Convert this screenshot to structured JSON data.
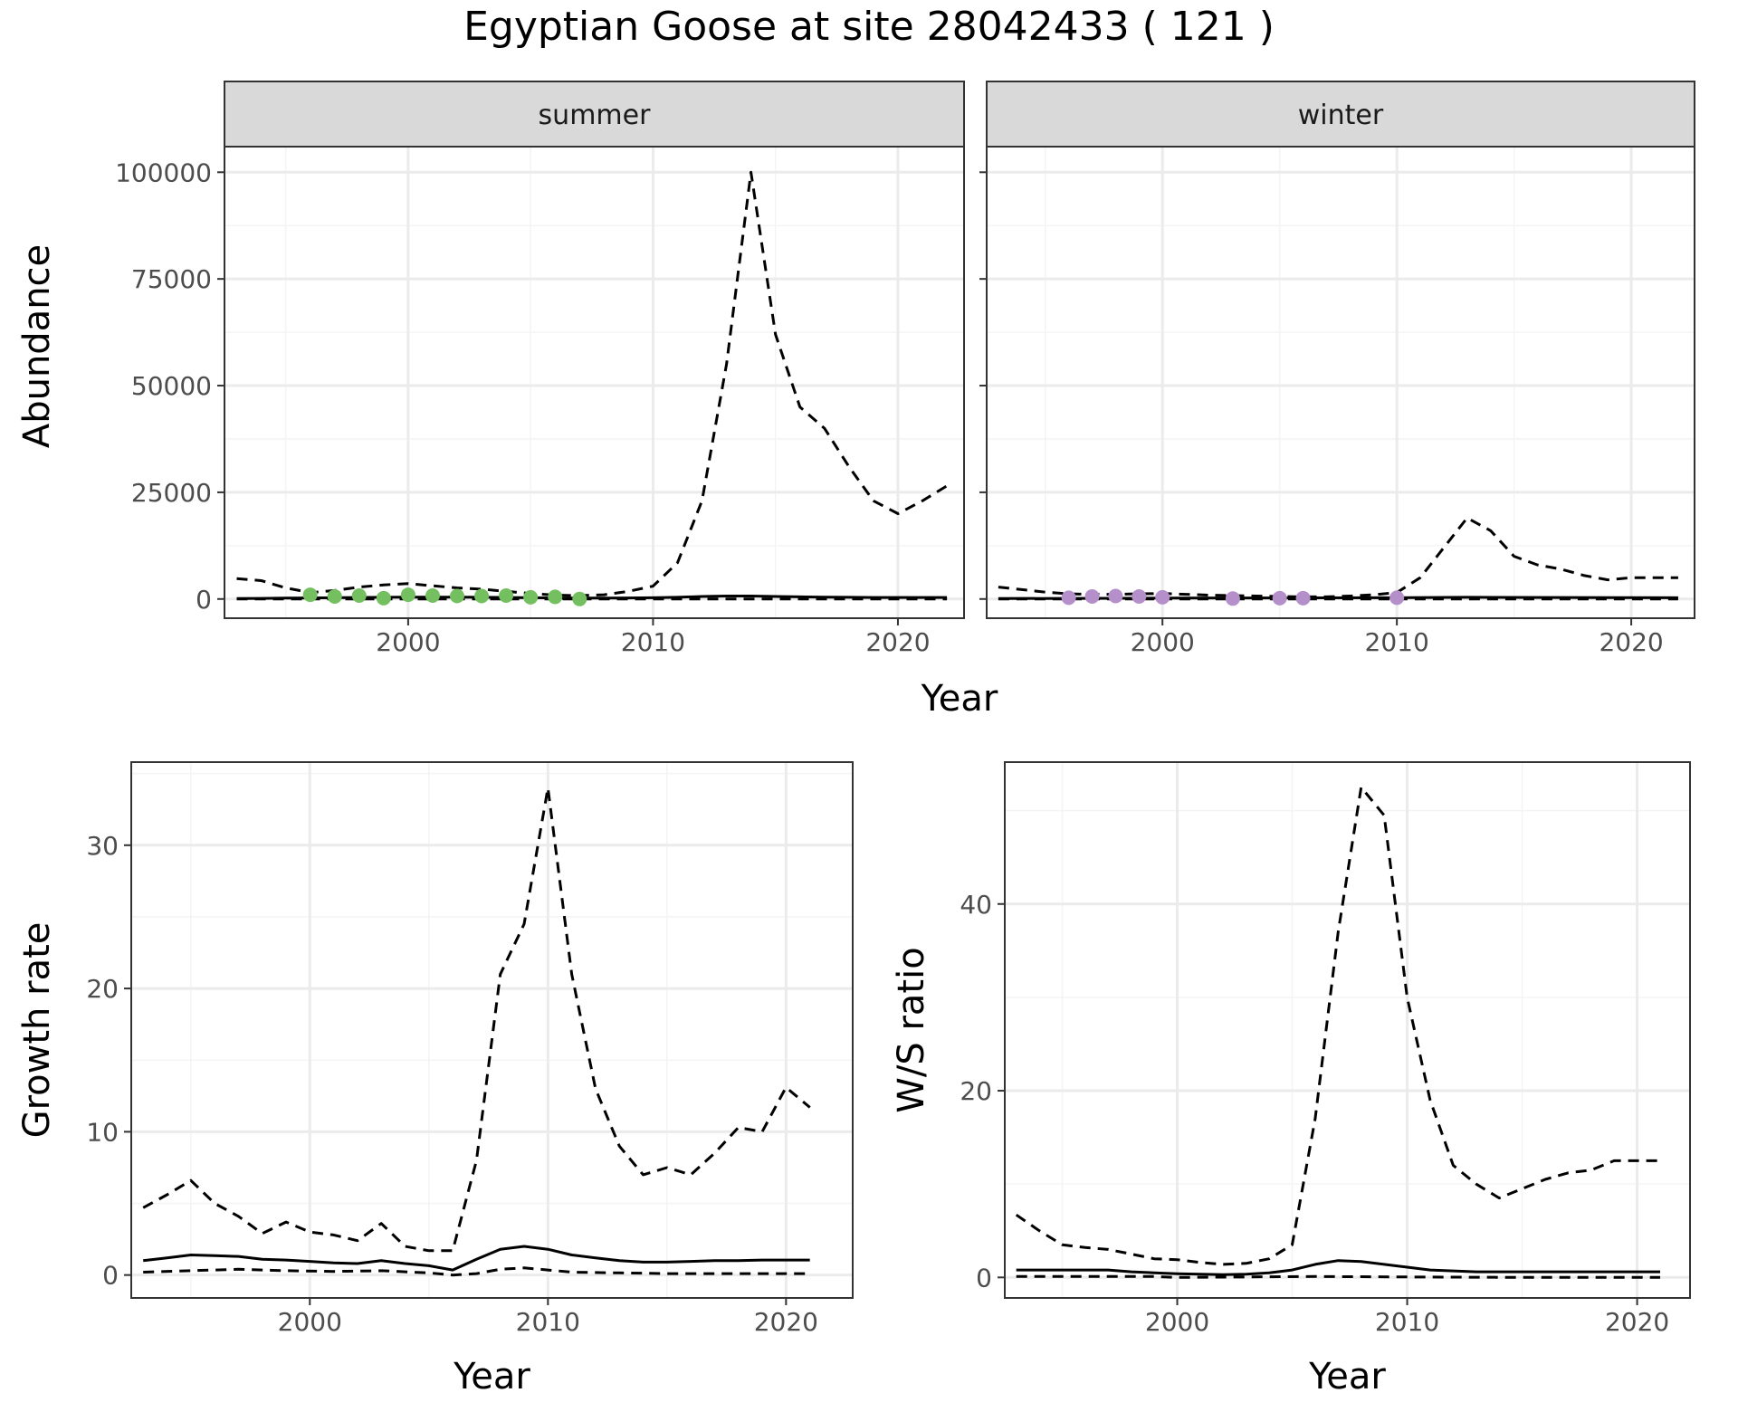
{
  "title": "Egyptian Goose at site 28042433 ( 121 )",
  "colors": {
    "summer_points": "#74c060",
    "winter_points": "#b48fca",
    "line": "#000000",
    "grid_major": "#ebebeb",
    "grid_minor": "#f4f4f4",
    "strip_bg": "#d9d9d9"
  },
  "chart_data": [
    {
      "id": "abundance",
      "type": "line",
      "facets": [
        "summer",
        "winter"
      ],
      "xlabel": "Year",
      "ylabel": "Abundance",
      "xlim": [
        1992.5,
        2022.7
      ],
      "ylim": [
        -4500,
        106000
      ],
      "x_ticks": [
        2000,
        2010,
        2020
      ],
      "y_ticks": [
        0,
        25000,
        50000,
        75000,
        100000
      ],
      "grid": true,
      "panels": [
        {
          "facet": "summer",
          "point_color": "summer_points",
          "series": [
            {
              "style": "upper-dashed",
              "x": [
                1993,
                1994,
                1995,
                1996,
                1997,
                1998,
                1999,
                2000,
                2001,
                2002,
                2003,
                2004,
                2005,
                2006,
                2007,
                2008,
                2009,
                2010,
                2011,
                2012,
                2013,
                2014,
                2015,
                2016,
                2017,
                2018,
                2019,
                2020,
                2021,
                2022
              ],
              "values": [
                4800,
                4300,
                2600,
                1500,
                2000,
                2800,
                3300,
                3600,
                3100,
                2600,
                2300,
                1800,
                1300,
                900,
                800,
                1000,
                1800,
                3000,
                8500,
                23000,
                55000,
                100000,
                62000,
                45000,
                40000,
                31000,
                23000,
                20000,
                23000,
                26500
              ]
            },
            {
              "style": "estimate-solid",
              "x": [
                1993,
                1994,
                1995,
                1996,
                1997,
                1998,
                1999,
                2000,
                2001,
                2002,
                2003,
                2004,
                2005,
                2006,
                2007,
                2008,
                2009,
                2010,
                2011,
                2012,
                2013,
                2014,
                2015,
                2016,
                2017,
                2018,
                2019,
                2020,
                2021,
                2022
              ],
              "values": [
                100,
                150,
                200,
                250,
                300,
                350,
                400,
                450,
                450,
                450,
                400,
                350,
                300,
                250,
                200,
                200,
                250,
                300,
                400,
                600,
                700,
                700,
                600,
                500,
                450,
                400,
                350,
                350,
                350,
                350
              ]
            },
            {
              "style": "lower-dashed",
              "x": [
                1993,
                2022
              ],
              "values": [
                0,
                0
              ]
            },
            {
              "style": "observed-points",
              "x": [
                1996,
                1997,
                1998,
                1999,
                2000,
                2001,
                2002,
                2003,
                2004,
                2005,
                2006,
                2007
              ],
              "values": [
                1000,
                600,
                800,
                200,
                1000,
                800,
                700,
                700,
                800,
                400,
                500,
                0
              ]
            }
          ]
        },
        {
          "facet": "winter",
          "point_color": "winter_points",
          "series": [
            {
              "style": "upper-dashed",
              "x": [
                1993,
                1994,
                1995,
                1996,
                1997,
                1998,
                1999,
                2000,
                2001,
                2002,
                2003,
                2004,
                2005,
                2006,
                2007,
                2008,
                2009,
                2010,
                2011,
                2012,
                2013,
                2014,
                2015,
                2016,
                2017,
                2018,
                2019,
                2020,
                2021,
                2022
              ],
              "values": [
                2800,
                2200,
                1600,
                1200,
                1100,
                1100,
                1200,
                1300,
                1100,
                900,
                800,
                700,
                600,
                500,
                500,
                700,
                1000,
                1500,
                5000,
                12000,
                19000,
                16000,
                10000,
                8000,
                7000,
                5500,
                4500,
                5000,
                5000,
                5000
              ]
            },
            {
              "style": "estimate-solid",
              "x": [
                1993,
                2000,
                2010,
                2013,
                2022
              ],
              "values": [
                100,
                200,
                300,
                400,
                300
              ]
            },
            {
              "style": "lower-dashed",
              "x": [
                1993,
                2022
              ],
              "values": [
                0,
                0
              ]
            },
            {
              "style": "observed-points",
              "x": [
                1996,
                1997,
                1998,
                1999,
                2000,
                2003,
                2005,
                2006,
                2010
              ],
              "values": [
                300,
                600,
                700,
                600,
                400,
                100,
                200,
                200,
                300
              ]
            }
          ]
        }
      ]
    },
    {
      "id": "growth",
      "type": "line",
      "xlabel": "Year",
      "ylabel": "Growth rate",
      "xlim": [
        1992.5,
        2022.8
      ],
      "ylim": [
        -1.6,
        35.8
      ],
      "x_ticks": [
        2000,
        2010,
        2020
      ],
      "y_ticks": [
        0,
        10,
        20,
        30
      ],
      "grid": true,
      "series": [
        {
          "style": "upper-dashed",
          "x": [
            1993,
            1994,
            1995,
            1996,
            1997,
            1998,
            1999,
            2000,
            2001,
            2002,
            2003,
            2004,
            2005,
            2006,
            2007,
            2008,
            2009,
            2010,
            2011,
            2012,
            2013,
            2014,
            2015,
            2016,
            2017,
            2018,
            2019,
            2020,
            2021
          ],
          "values": [
            4.7,
            5.6,
            6.6,
            5.0,
            4.1,
            2.9,
            3.7,
            3.0,
            2.8,
            2.4,
            3.6,
            2.0,
            1.7,
            1.7,
            8.0,
            21.0,
            24.5,
            34.0,
            21.0,
            13.0,
            9.0,
            7.0,
            7.5,
            7.0,
            8.5,
            10.3,
            10.0,
            13.1,
            11.7
          ]
        },
        {
          "style": "estimate-solid",
          "x": [
            1993,
            1994,
            1995,
            1996,
            1997,
            1998,
            1999,
            2000,
            2001,
            2002,
            2003,
            2004,
            2005,
            2006,
            2007,
            2008,
            2009,
            2010,
            2011,
            2012,
            2013,
            2014,
            2015,
            2016,
            2017,
            2018,
            2019,
            2020,
            2021
          ],
          "values": [
            1.0,
            1.2,
            1.4,
            1.35,
            1.3,
            1.1,
            1.05,
            0.95,
            0.85,
            0.8,
            1.0,
            0.8,
            0.65,
            0.35,
            1.1,
            1.8,
            2.0,
            1.8,
            1.4,
            1.2,
            1.0,
            0.9,
            0.9,
            0.95,
            1.0,
            1.0,
            1.05,
            1.05,
            1.05
          ]
        },
        {
          "style": "lower-dashed",
          "x": [
            1993,
            1995,
            1997,
            1999,
            2001,
            2003,
            2005,
            2006,
            2007,
            2008,
            2009,
            2010,
            2011,
            2013,
            2015,
            2017,
            2019,
            2021
          ],
          "values": [
            0.2,
            0.3,
            0.4,
            0.3,
            0.25,
            0.3,
            0.15,
            0.0,
            0.1,
            0.4,
            0.5,
            0.35,
            0.2,
            0.15,
            0.1,
            0.1,
            0.1,
            0.1
          ]
        }
      ]
    },
    {
      "id": "ratio",
      "type": "line",
      "xlabel": "Year",
      "ylabel": "W/S ratio",
      "xlim": [
        1992.5,
        2022.3
      ],
      "ylim": [
        -2.2,
        55.2
      ],
      "x_ticks": [
        2000,
        2010,
        2020
      ],
      "y_ticks": [
        0,
        20,
        40
      ],
      "grid": true,
      "series": [
        {
          "style": "upper-dashed",
          "x": [
            1993,
            1994,
            1995,
            1996,
            1997,
            1998,
            1999,
            2000,
            2001,
            2002,
            2003,
            2004,
            2005,
            2006,
            2007,
            2008,
            2009,
            2010,
            2011,
            2012,
            2013,
            2014,
            2015,
            2016,
            2017,
            2018,
            2019,
            2020,
            2021
          ],
          "values": [
            6.7,
            5.0,
            3.5,
            3.2,
            3.0,
            2.5,
            2.0,
            1.9,
            1.6,
            1.4,
            1.5,
            2.0,
            3.5,
            17.0,
            37.0,
            52.5,
            49.5,
            30.0,
            19.0,
            12.0,
            10.0,
            8.5,
            9.5,
            10.5,
            11.2,
            11.5,
            12.5,
            12.5,
            12.5
          ]
        },
        {
          "style": "estimate-solid",
          "x": [
            1993,
            1994,
            1995,
            1996,
            1997,
            1998,
            1999,
            2000,
            2001,
            2002,
            2003,
            2004,
            2005,
            2006,
            2007,
            2008,
            2009,
            2010,
            2011,
            2012,
            2013,
            2014,
            2015,
            2016,
            2017,
            2018,
            2019,
            2020,
            2021
          ],
          "values": [
            0.8,
            0.8,
            0.8,
            0.8,
            0.8,
            0.6,
            0.5,
            0.4,
            0.35,
            0.3,
            0.35,
            0.5,
            0.8,
            1.4,
            1.8,
            1.7,
            1.4,
            1.1,
            0.8,
            0.7,
            0.6,
            0.6,
            0.6,
            0.6,
            0.6,
            0.6,
            0.6,
            0.6,
            0.6
          ]
        },
        {
          "style": "lower-dashed",
          "x": [
            1993,
            1999,
            2000,
            2006,
            2010,
            2015,
            2021
          ],
          "values": [
            0.1,
            0.1,
            0.0,
            0.1,
            0.05,
            0.0,
            0.0
          ]
        }
      ]
    }
  ]
}
